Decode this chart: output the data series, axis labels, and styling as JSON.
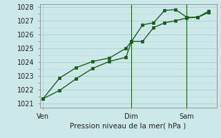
{
  "background_color": "#cce8e8",
  "grid_color_major": "#aacece",
  "grid_color_minor": "#bbdada",
  "line_color": "#1a5c1a",
  "x_ticks_labels": [
    "Ven",
    "Dim",
    "Sam"
  ],
  "x_ticks_positions": [
    0.0,
    8.0,
    13.0
  ],
  "xlabel": "Pression niveau de la mer( hPa )",
  "ylim": [
    1020.7,
    1028.2
  ],
  "yticks": [
    1021,
    1022,
    1023,
    1024,
    1025,
    1026,
    1027,
    1028
  ],
  "xlim": [
    -0.3,
    15.7
  ],
  "series1_x": [
    0,
    1.5,
    3,
    4.5,
    6,
    7.5,
    8,
    9,
    10,
    11,
    12,
    13,
    14,
    15
  ],
  "series1_y": [
    1021.35,
    1021.95,
    1022.8,
    1023.55,
    1024.05,
    1024.35,
    1025.5,
    1025.5,
    1026.5,
    1026.85,
    1027.0,
    1027.2,
    1027.25,
    1027.6
  ],
  "series2_x": [
    0,
    1.5,
    3,
    4.5,
    6,
    7.5,
    8,
    9,
    10,
    11,
    12,
    13,
    14,
    15
  ],
  "series2_y": [
    1021.35,
    1022.85,
    1023.6,
    1024.05,
    1024.3,
    1025.0,
    1025.5,
    1026.7,
    1026.85,
    1027.75,
    1027.8,
    1027.25,
    1027.25,
    1027.7
  ],
  "vline_x1": 8.0,
  "vline_x2": 13.0,
  "marker_size": 2.5,
  "line_width": 1.0
}
